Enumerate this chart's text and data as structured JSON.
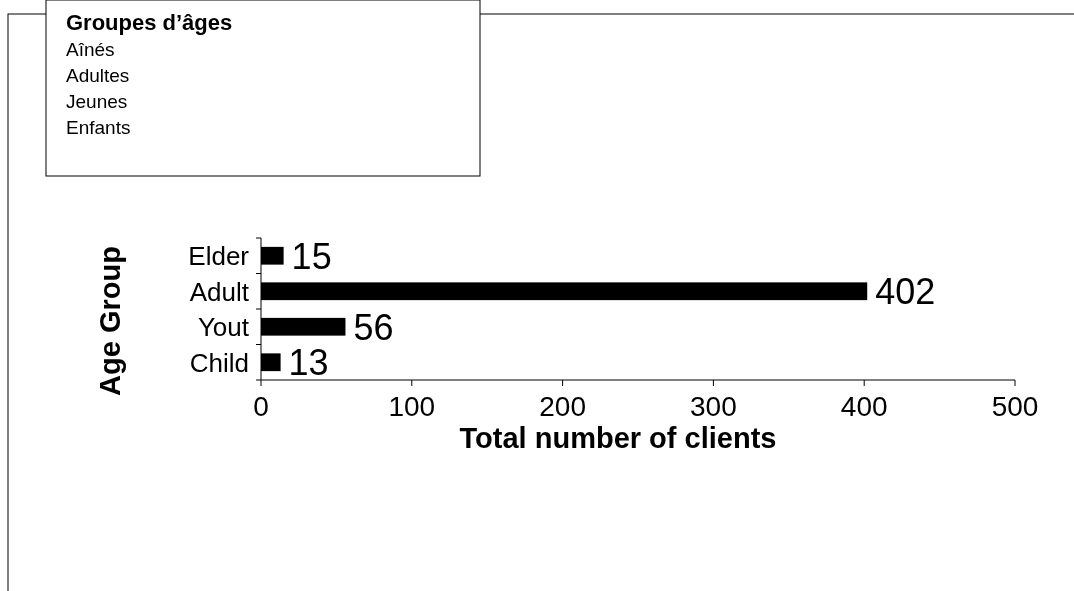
{
  "chart_data": {
    "type": "bar",
    "orientation": "horizontal",
    "xlabel": "Total number of clients",
    "ylabel": "Age Group",
    "categories": [
      "Elder",
      "Adult",
      "Yout",
      "Child"
    ],
    "values": [
      15,
      402,
      56,
      13
    ],
    "color": "#000000",
    "xlim": [
      0,
      500
    ],
    "xticks": [
      0,
      100,
      200,
      300,
      400,
      500
    ],
    "data_labels": true,
    "grid": false,
    "annotations": [
      "Groupes d’âges",
      "Aînés",
      "Adultes",
      "Jeunes",
      "Enfants"
    ]
  }
}
